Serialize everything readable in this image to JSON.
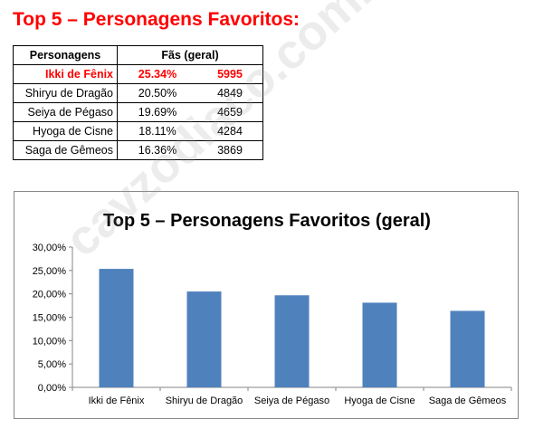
{
  "heading": "Top 5 – Personagens Favoritos:",
  "table": {
    "col_name": "Personagens",
    "col_fans": "Fãs (geral)",
    "rows": [
      {
        "name": "Ikki de Fênix",
        "pct": "25.34%",
        "count": "5995"
      },
      {
        "name": "Shiryu de Dragão",
        "pct": "20.50%",
        "count": "4849"
      },
      {
        "name": "Seiya de Pégaso",
        "pct": "19.69%",
        "count": "4659"
      },
      {
        "name": "Hyoga de Cisne",
        "pct": "18.11%",
        "count": "4284"
      },
      {
        "name": "Saga de Gêmeos",
        "pct": "16.36%",
        "count": "3869"
      }
    ]
  },
  "watermark": "cavzodiaco.com.br",
  "colors": {
    "bar": "#4f81bd",
    "highlight": "#ff0000"
  },
  "chart_data": {
    "type": "bar",
    "title": "Top 5 – Personagens Favoritos (geral)",
    "categories": [
      "Ikki de Fênix",
      "Shiryu de Dragão",
      "Seiya de Pégaso",
      "Hyoga de Cisne",
      "Saga de Gêmeos"
    ],
    "values": [
      25.34,
      20.5,
      19.69,
      18.11,
      16.36
    ],
    "yticks": [
      "0,00%",
      "5,00%",
      "10,00%",
      "15,00%",
      "20,00%",
      "25,00%",
      "30,00%"
    ],
    "ylim": [
      0,
      30
    ],
    "grid": false,
    "xlabel": "",
    "ylabel": ""
  }
}
